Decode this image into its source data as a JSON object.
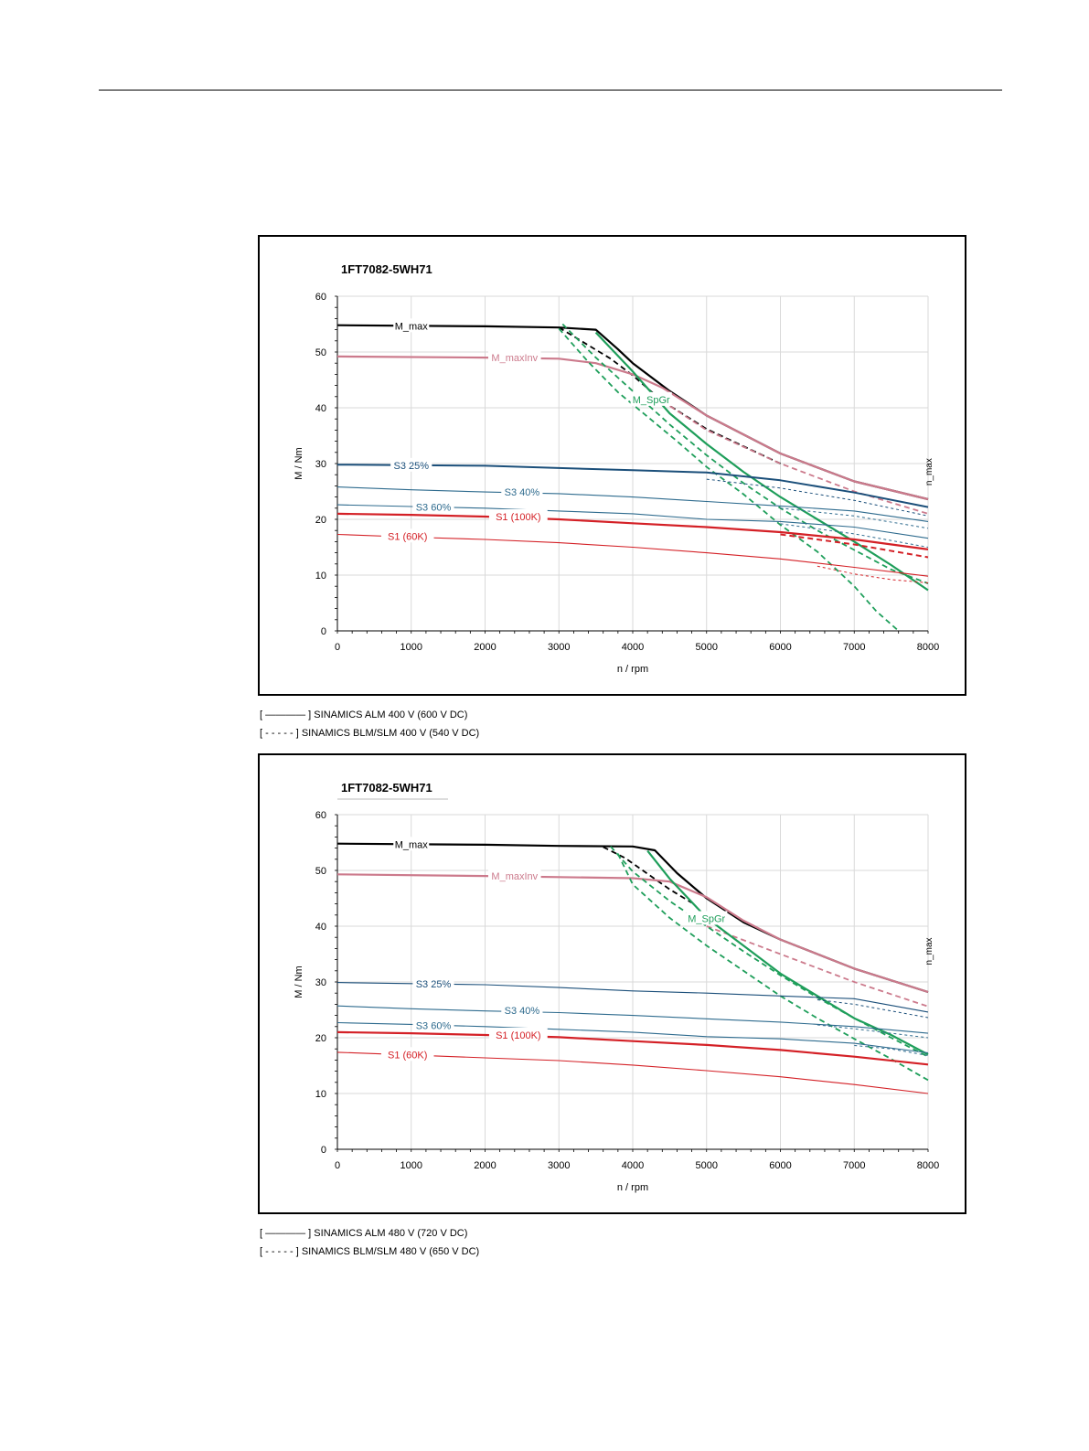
{
  "chart_data": [
    {
      "type": "line",
      "title": "1FT7082-5WH71",
      "xlabel": "n / rpm",
      "ylabel": "M / Nm",
      "xlim": [
        0,
        8000
      ],
      "ylim": [
        0,
        60
      ],
      "xticks": [
        0,
        1000,
        2000,
        3000,
        4000,
        5000,
        6000,
        7000,
        8000
      ],
      "yticks": [
        0,
        10,
        20,
        30,
        40,
        50,
        60
      ],
      "grid": true,
      "limit_label": "n_max",
      "legend": [
        {
          "marker": "[ ———— ]",
          "text": "SINAMICS ALM 400 V (600 V DC)"
        },
        {
          "marker": "[ - - - - - ]",
          "text": "SINAMICS BLM/SLM 400 V (540 V DC)"
        }
      ],
      "series": [
        {
          "name": "M_max",
          "label": "M_max",
          "color": "#000000",
          "width": 2.2,
          "dash": false,
          "label_at": [
            1000,
            54.7
          ],
          "x": [
            0,
            2000,
            3000,
            3500,
            3800,
            4000,
            4300,
            4500,
            5000,
            6000,
            7000,
            8000
          ],
          "y": [
            54.8,
            54.6,
            54.4,
            54.0,
            50.5,
            48.0,
            45.0,
            43.0,
            38.6,
            31.8,
            26.8,
            23.6
          ]
        },
        {
          "name": "M_max BLM",
          "color": "#000000",
          "width": 1.8,
          "dash": true,
          "x": [
            3000,
            3300,
            3700,
            4000,
            4400,
            5000,
            6000
          ],
          "y": [
            54.4,
            52.0,
            48.8,
            45.8,
            41.2,
            36.2,
            30.0
          ]
        },
        {
          "name": "M_maxInv",
          "label": "M_maxInv",
          "color": "#cc7a8c",
          "width": 2.2,
          "dash": false,
          "label_at": [
            2400,
            49.0
          ],
          "x": [
            0,
            2000,
            3000,
            3500,
            4000,
            4400,
            5000,
            6000,
            7000,
            8000
          ],
          "y": [
            49.2,
            49.0,
            48.8,
            48.0,
            46.0,
            43.6,
            38.6,
            31.8,
            26.8,
            23.6
          ]
        },
        {
          "name": "M_maxInv BLM",
          "color": "#cc7a8c",
          "width": 1.8,
          "dash": true,
          "x": [
            4400,
            5000,
            6000,
            7000,
            8000
          ],
          "y": [
            41.2,
            36.0,
            30.0,
            25.0,
            21.0
          ]
        },
        {
          "name": "M_SpGr",
          "label": "M_SpGr",
          "color": "#1e9e5a",
          "width": 2.2,
          "dash": false,
          "label_at": [
            4250,
            41.5
          ],
          "x": [
            3500,
            4000,
            4500,
            5000,
            5500,
            6000,
            6500,
            7000,
            7500,
            8000
          ],
          "y": [
            53.5,
            46.5,
            39.0,
            33.5,
            28.5,
            24.0,
            20.0,
            16.0,
            11.8,
            7.3
          ]
        },
        {
          "name": "M_SpGr BLM 1",
          "color": "#1e9e5a",
          "width": 1.8,
          "dash": true,
          "x": [
            3050,
            3500,
            4000,
            4500,
            5000,
            5500,
            6000,
            6500,
            7000,
            7500,
            8000
          ],
          "y": [
            55.0,
            49.0,
            43.0,
            37.0,
            31.5,
            26.5,
            22.0,
            18.0,
            14.5,
            11.0,
            8.5
          ]
        },
        {
          "name": "M_SpGr BLM 2",
          "color": "#1e9e5a",
          "width": 1.8,
          "dash": true,
          "x": [
            3000,
            3400,
            3800,
            4200,
            4600,
            5000,
            5500,
            6000,
            6500,
            7000,
            7300,
            7600
          ],
          "y": [
            54.2,
            48.2,
            42.8,
            38.4,
            34.0,
            29.4,
            24.5,
            19.0,
            14.2,
            8.0,
            3.5,
            0
          ]
        },
        {
          "name": "S3 25%",
          "label": "S3 25%",
          "color": "#1b4f7a",
          "width": 2.0,
          "dash": false,
          "label_at": [
            1000,
            29.7
          ],
          "x": [
            0,
            2000,
            3000,
            4000,
            5000,
            6000,
            7000,
            8000
          ],
          "y": [
            29.8,
            29.6,
            29.2,
            28.8,
            28.4,
            27.0,
            24.8,
            22.2
          ]
        },
        {
          "name": "S3 25% BLM",
          "color": "#1b4f7a",
          "width": 1.0,
          "dash": true,
          "x": [
            5000,
            6000,
            7000,
            8000
          ],
          "y": [
            27.2,
            25.6,
            23.4,
            20.6
          ]
        },
        {
          "name": "S3 40%",
          "label": "S3 40%",
          "color": "#2e6b8e",
          "width": 1.1,
          "dash": false,
          "label_at": [
            2500,
            24.9
          ],
          "x": [
            0,
            1000,
            2000,
            3000,
            4000,
            5000,
            6000,
            7000,
            8000
          ],
          "y": [
            25.8,
            25.3,
            24.9,
            24.6,
            24.0,
            23.2,
            22.4,
            21.5,
            19.6
          ]
        },
        {
          "name": "S3 40% BLM",
          "color": "#2e6b8e",
          "width": 1.0,
          "dash": true,
          "x": [
            6000,
            7000,
            8000
          ],
          "y": [
            22.0,
            20.6,
            18.4
          ]
        },
        {
          "name": "S3 60%",
          "label": "S3 60%",
          "color": "#2e6b8e",
          "width": 1.1,
          "dash": false,
          "label_at": [
            1300,
            22.2
          ],
          "x": [
            0,
            1000,
            2000,
            3000,
            4000,
            5000,
            6000,
            7000,
            8000
          ],
          "y": [
            22.6,
            22.3,
            22.0,
            21.5,
            21.0,
            20.0,
            19.6,
            18.6,
            16.6
          ]
        },
        {
          "name": "S3 60% BLM",
          "color": "#2e6b8e",
          "width": 1.0,
          "dash": true,
          "x": [
            6000,
            7000,
            8000
          ],
          "y": [
            19.2,
            17.4,
            15.0
          ]
        },
        {
          "name": "S1 (100K)",
          "label": "S1 (100K)",
          "color": "#d42026",
          "width": 2.2,
          "dash": false,
          "label_at": [
            2450,
            20.5
          ],
          "x": [
            0,
            1000,
            2000,
            3000,
            4000,
            5000,
            6000,
            7000,
            8000
          ],
          "y": [
            21.0,
            20.8,
            20.5,
            20.0,
            19.3,
            18.6,
            17.7,
            16.4,
            14.6
          ]
        },
        {
          "name": "S1 (100K) BLM",
          "color": "#d42026",
          "width": 2.0,
          "dash": true,
          "x": [
            6000,
            7000,
            8000
          ],
          "y": [
            17.3,
            15.5,
            13.2
          ]
        },
        {
          "name": "S1 (60K)",
          "label": "S1 (60K)",
          "color": "#d42026",
          "width": 1.1,
          "dash": false,
          "label_at": [
            950,
            17.0
          ],
          "x": [
            0,
            1000,
            2000,
            3000,
            4000,
            5000,
            6000,
            7000,
            8000
          ],
          "y": [
            17.3,
            16.8,
            16.4,
            15.8,
            15.0,
            14.0,
            12.9,
            11.4,
            9.8
          ]
        },
        {
          "name": "S1 (60K) BLM",
          "color": "#d42026",
          "width": 1.0,
          "dash": true,
          "x": [
            6500,
            7000,
            7500,
            8000
          ],
          "y": [
            11.6,
            10.2,
            9.2,
            8.6
          ]
        }
      ]
    },
    {
      "type": "line",
      "title": "1FT7082-5WH71",
      "xlabel": "n / rpm",
      "ylabel": "M / Nm",
      "xlim": [
        0,
        8000
      ],
      "ylim": [
        0,
        60
      ],
      "xticks": [
        0,
        1000,
        2000,
        3000,
        4000,
        5000,
        6000,
        7000,
        8000
      ],
      "yticks": [
        0,
        10,
        20,
        30,
        40,
        50,
        60
      ],
      "grid": true,
      "limit_label": "n_max",
      "legend": [
        {
          "marker": "[ ———— ]",
          "text": "SINAMICS ALM 480 V (720 V DC)"
        },
        {
          "marker": "[ - - - - - ]",
          "text": "SINAMICS BLM/SLM 480 V (650 V DC)"
        }
      ],
      "series": [
        {
          "name": "M_max",
          "label": "M_max",
          "color": "#000000",
          "width": 2.2,
          "dash": false,
          "label_at": [
            1000,
            54.7
          ],
          "x": [
            0,
            2000,
            3000,
            4000,
            4300,
            4600,
            5000,
            5500,
            6000,
            7000,
            8000
          ],
          "y": [
            54.8,
            54.6,
            54.4,
            54.3,
            53.6,
            49.5,
            45.0,
            40.7,
            37.6,
            32.4,
            28.2
          ]
        },
        {
          "name": "M_max BLM",
          "color": "#000000",
          "width": 1.8,
          "dash": true,
          "x": [
            3600,
            3900,
            4200,
            4500,
            4800
          ],
          "y": [
            54.2,
            52.2,
            49.4,
            46.6,
            44.2
          ]
        },
        {
          "name": "M_maxInv",
          "label": "M_maxInv",
          "color": "#cc7a8c",
          "width": 2.2,
          "dash": false,
          "label_at": [
            2400,
            49.0
          ],
          "x": [
            0,
            2000,
            3000,
            4000,
            4500,
            5000,
            5500,
            6000,
            7000,
            8000
          ],
          "y": [
            49.3,
            49.0,
            48.8,
            48.6,
            48.0,
            45.2,
            41.0,
            37.6,
            32.4,
            28.2
          ]
        },
        {
          "name": "M_maxInv BLM",
          "color": "#cc7a8c",
          "width": 1.8,
          "dash": true,
          "x": [
            5000,
            6000,
            7000,
            8000
          ],
          "y": [
            40.0,
            35.0,
            30.0,
            25.6
          ]
        },
        {
          "name": "M_SpGr",
          "label": "M_SpGr",
          "color": "#1e9e5a",
          "width": 2.2,
          "dash": false,
          "label_at": [
            5000,
            41.4
          ],
          "x": [
            4200,
            4500,
            5000,
            5500,
            6000,
            6500,
            7000,
            7500,
            8000
          ],
          "y": [
            53.5,
            48.5,
            41.5,
            36.5,
            31.5,
            27.5,
            23.5,
            20.5,
            17.0
          ]
        },
        {
          "name": "M_SpGr BLM 1",
          "color": "#1e9e5a",
          "width": 1.8,
          "dash": true,
          "x": [
            3700,
            4000,
            4500,
            5000,
            5500,
            6000,
            6500,
            7000,
            7500,
            8000
          ],
          "y": [
            54.3,
            49.8,
            44.5,
            40.0,
            35.5,
            31.2,
            27.2,
            23.5,
            20.0,
            16.6
          ]
        },
        {
          "name": "M_SpGr BLM 2",
          "color": "#1e9e5a",
          "width": 1.8,
          "dash": true,
          "x": [
            3800,
            4000,
            4500,
            5000,
            5500,
            6000,
            6500,
            7000,
            7500,
            8000
          ],
          "y": [
            53.0,
            47.5,
            41.5,
            36.5,
            32.0,
            27.5,
            23.5,
            19.8,
            16.2,
            12.4
          ]
        },
        {
          "name": "S3 25%",
          "label": "S3 25%",
          "color": "#1b4f7a",
          "width": 1.1,
          "dash": false,
          "label_at": [
            1300,
            29.7
          ],
          "x": [
            0,
            1000,
            2000,
            3000,
            4000,
            5000,
            6000,
            7000,
            8000
          ],
          "y": [
            29.9,
            29.7,
            29.5,
            29.0,
            28.4,
            28.0,
            27.5,
            27.0,
            24.6
          ]
        },
        {
          "name": "S3 25% BLM",
          "color": "#1b4f7a",
          "width": 1.0,
          "dash": true,
          "x": [
            6500,
            7000,
            8000
          ],
          "y": [
            26.8,
            26.0,
            23.6
          ]
        },
        {
          "name": "S3 40%",
          "label": "S3 40%",
          "color": "#2e6b8e",
          "width": 1.1,
          "dash": false,
          "label_at": [
            2500,
            24.9
          ],
          "x": [
            0,
            1000,
            2000,
            3000,
            4000,
            5000,
            6000,
            7000,
            8000
          ],
          "y": [
            25.7,
            25.2,
            24.8,
            24.5,
            24.0,
            23.4,
            22.8,
            22.0,
            20.8
          ]
        },
        {
          "name": "S3 40% BLM",
          "color": "#2e6b8e",
          "width": 1.0,
          "dash": true,
          "x": [
            6500,
            7000,
            8000
          ],
          "y": [
            22.3,
            21.6,
            20.0
          ]
        },
        {
          "name": "S3 60%",
          "label": "S3 60%",
          "color": "#2e6b8e",
          "width": 1.1,
          "dash": false,
          "label_at": [
            1300,
            22.2
          ],
          "x": [
            0,
            1000,
            2000,
            3000,
            4000,
            5000,
            6000,
            7000,
            8000
          ],
          "y": [
            22.7,
            22.4,
            22.0,
            21.5,
            21.0,
            20.2,
            19.8,
            19.0,
            17.3
          ]
        },
        {
          "name": "S3 60% BLM",
          "color": "#2e6b8e",
          "width": 1.0,
          "dash": true,
          "x": [
            7000,
            7500,
            8000
          ],
          "y": [
            18.6,
            18.0,
            16.8
          ]
        },
        {
          "name": "S1 (100K)",
          "label": "S1 (100K)",
          "color": "#d42026",
          "width": 2.2,
          "dash": false,
          "label_at": [
            2450,
            20.5
          ],
          "x": [
            0,
            1000,
            2000,
            3000,
            4000,
            5000,
            6000,
            7000,
            8000
          ],
          "y": [
            21.0,
            20.8,
            20.5,
            20.1,
            19.4,
            18.7,
            17.8,
            16.6,
            15.2
          ]
        },
        {
          "name": "S1 (60K)",
          "label": "S1 (60K)",
          "color": "#d42026",
          "width": 1.1,
          "dash": false,
          "label_at": [
            950,
            17.0
          ],
          "x": [
            0,
            1000,
            2000,
            3000,
            4000,
            5000,
            6000,
            7000,
            8000
          ],
          "y": [
            17.4,
            16.9,
            16.4,
            15.9,
            15.1,
            14.1,
            13.0,
            11.6,
            10.0
          ]
        }
      ]
    }
  ]
}
